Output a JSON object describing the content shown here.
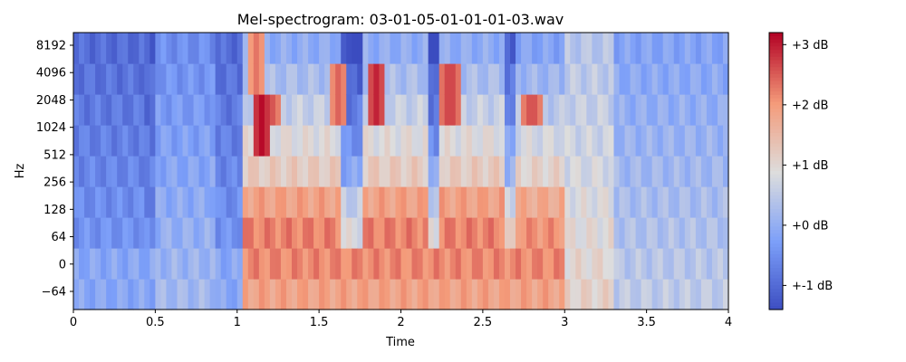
{
  "chart_data": {
    "type": "heatmap",
    "title": "Mel-spectrogram: 03-01-05-01-01-01-03.wav",
    "xlabel": "Time",
    "ylabel": "Hz",
    "xlim": [
      0,
      4.0
    ],
    "x_ticks": [
      {
        "value": 0,
        "label": "0"
      },
      {
        "value": 0.5,
        "label": "0.5"
      },
      {
        "value": 1.0,
        "label": "1"
      },
      {
        "value": 1.5,
        "label": "1.5"
      },
      {
        "value": 2.0,
        "label": "2"
      },
      {
        "value": 2.5,
        "label": "2.5"
      },
      {
        "value": 3.0,
        "label": "3"
      },
      {
        "value": 3.5,
        "label": "3.5"
      },
      {
        "value": 4.0,
        "label": "4"
      }
    ],
    "y_ticks": [
      {
        "value": -64,
        "label": "−64"
      },
      {
        "value": 0,
        "label": "0"
      },
      {
        "value": 64,
        "label": "64"
      },
      {
        "value": 128,
        "label": "128"
      },
      {
        "value": 256,
        "label": "256"
      },
      {
        "value": 512,
        "label": "512"
      },
      {
        "value": 1024,
        "label": "1024"
      },
      {
        "value": 2048,
        "label": "2048"
      },
      {
        "value": 4096,
        "label": "4096"
      },
      {
        "value": 8192,
        "label": "8192"
      }
    ],
    "y_scale": "symlog",
    "colormap": "coolwarm",
    "colorbar": {
      "range": [
        -1.4,
        3.2
      ],
      "ticks": [
        {
          "value": -1,
          "label": "+-1 dB"
        },
        {
          "value": 0,
          "label": "+0 dB"
        },
        {
          "value": 1,
          "label": "+1 dB"
        },
        {
          "value": 2,
          "label": "+2 dB"
        },
        {
          "value": 3,
          "label": "+3 dB"
        }
      ]
    },
    "segments": [
      {
        "t0": 0.0,
        "t1": 0.42,
        "level": 0.05
      },
      {
        "t0": 0.42,
        "t1": 0.5,
        "level": 0.02
      },
      {
        "t0": 0.5,
        "t1": 0.88,
        "level": 0.15
      },
      {
        "t0": 0.88,
        "t1": 1.05,
        "level": 0.05
      },
      {
        "t0": 1.05,
        "t1": 1.65,
        "level": 0.85
      },
      {
        "t0": 1.65,
        "t1": 1.78,
        "level": 0.55
      },
      {
        "t0": 1.78,
        "t1": 2.18,
        "level": 0.85
      },
      {
        "t0": 2.18,
        "t1": 2.24,
        "level": 0.55
      },
      {
        "t0": 2.24,
        "t1": 2.65,
        "level": 0.85
      },
      {
        "t0": 2.65,
        "t1": 2.7,
        "level": 0.6
      },
      {
        "t0": 2.7,
        "t1": 3.0,
        "level": 0.82
      },
      {
        "t0": 3.0,
        "t1": 3.3,
        "level": 0.35
      },
      {
        "t0": 3.3,
        "t1": 4.0,
        "level": 0.22
      }
    ],
    "hotspots": [
      {
        "t": 1.15,
        "hz": 1200,
        "level": 0.99
      },
      {
        "t": 1.2,
        "hz": 1800,
        "level": 0.9
      },
      {
        "t": 1.85,
        "hz": 2400,
        "level": 0.95
      },
      {
        "t": 2.3,
        "hz": 2400,
        "level": 0.92
      },
      {
        "t": 2.8,
        "hz": 1500,
        "level": 0.9
      },
      {
        "t": 1.12,
        "hz": 6000,
        "level": 0.82
      },
      {
        "t": 1.62,
        "hz": 2000,
        "level": 0.85
      }
    ],
    "grid": false
  }
}
